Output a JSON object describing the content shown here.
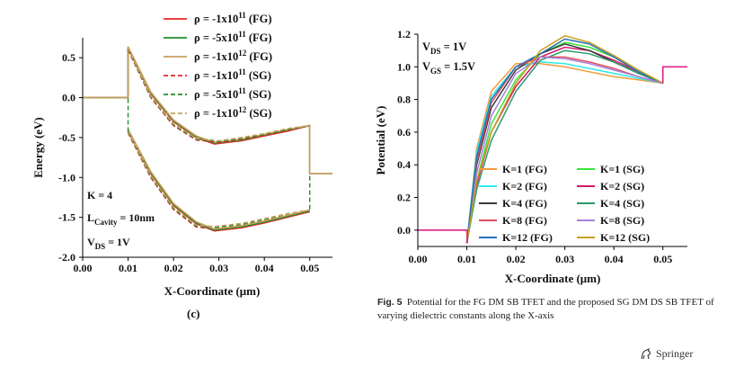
{
  "panel_label": "(c)",
  "caption": {
    "label": "Fig. 5",
    "text": "Potential for the FG DM SB TFET and the proposed SG DM DS SB TFET of varying dielectric constants along the X-axis"
  },
  "publisher": {
    "name": "Springer",
    "icon": "springer-horse-icon"
  },
  "chart_data": [
    {
      "type": "line",
      "xlabel": "X-Coordinate (μm)",
      "ylabel": "Energy (eV)",
      "xlim": [
        0.0,
        0.055
      ],
      "ylim": [
        -2.0,
        0.75
      ],
      "xticks": [
        "0.00",
        "0.01",
        "0.02",
        "0.03",
        "0.04",
        "0.05"
      ],
      "yticks": [
        "0.5",
        "0.0",
        "-0.5",
        "-1.0",
        "-1.5",
        "-2.0"
      ],
      "legend_position": "top-right",
      "annotations": [
        "K = 4",
        "L",
        "Cavity",
        "= 10nm",
        "V",
        "DS",
        "= 1V"
      ],
      "series": [
        {
          "name": "ρ = -1x10",
          "sup": "11",
          "tag": "(FG)",
          "color": "#e8242c",
          "dashed": false,
          "band": "conduction",
          "x": [
            0.0,
            0.01,
            0.01,
            0.015,
            0.02,
            0.025,
            0.029,
            0.035,
            0.04,
            0.045,
            0.05,
            0.05,
            0.055
          ],
          "y": [
            0.0,
            0.0,
            0.62,
            0.05,
            -0.3,
            -0.5,
            -0.58,
            -0.54,
            -0.48,
            -0.42,
            -0.35,
            -0.95,
            -0.95
          ]
        },
        {
          "name": "ρ = -5x10",
          "sup": "11",
          "tag": "(FG)",
          "color": "#1f8f2a",
          "dashed": false,
          "band": "conduction",
          "x": [
            0.0,
            0.01,
            0.01,
            0.015,
            0.02,
            0.025,
            0.029,
            0.035,
            0.04,
            0.045,
            0.05,
            0.05,
            0.055
          ],
          "y": [
            0.0,
            0.0,
            0.63,
            0.06,
            -0.29,
            -0.49,
            -0.57,
            -0.53,
            -0.47,
            -0.41,
            -0.35,
            -0.95,
            -0.95
          ]
        },
        {
          "name": "ρ = -1x10",
          "sup": "12",
          "tag": "(FG)",
          "color": "#c8a060",
          "dashed": false,
          "band": "conduction",
          "x": [
            0.0,
            0.01,
            0.01,
            0.015,
            0.02,
            0.025,
            0.029,
            0.035,
            0.04,
            0.045,
            0.05,
            0.05,
            0.055
          ],
          "y": [
            0.0,
            0.0,
            0.64,
            0.07,
            -0.28,
            -0.48,
            -0.56,
            -0.52,
            -0.46,
            -0.4,
            -0.35,
            -0.95,
            -0.95
          ]
        },
        {
          "name": "ρ = -1x10",
          "sup": "11",
          "tag": "(SG)",
          "color": "#e8242c",
          "dashed": true,
          "band": "conduction",
          "x": [
            0.01,
            0.015,
            0.02,
            0.025,
            0.03,
            0.035,
            0.04,
            0.045,
            0.05
          ],
          "y": [
            0.6,
            0.0,
            -0.35,
            -0.53,
            -0.56,
            -0.52,
            -0.47,
            -0.41,
            -0.35
          ]
        },
        {
          "name": "ρ = -5x10",
          "sup": "11",
          "tag": "(SG)",
          "color": "#1f8f2a",
          "dashed": true,
          "band": "conduction",
          "x": [
            0.01,
            0.015,
            0.02,
            0.025,
            0.03,
            0.035,
            0.04,
            0.045,
            0.05
          ],
          "y": [
            0.61,
            0.01,
            -0.34,
            -0.52,
            -0.55,
            -0.51,
            -0.46,
            -0.4,
            -0.35
          ]
        },
        {
          "name": "ρ = -1x10",
          "sup": "12",
          "tag": "(SG)",
          "color": "#c8a060",
          "dashed": true,
          "band": "conduction",
          "x": [
            0.01,
            0.015,
            0.02,
            0.025,
            0.03,
            0.035,
            0.04,
            0.045,
            0.05
          ],
          "y": [
            0.62,
            0.02,
            -0.33,
            -0.51,
            -0.54,
            -0.5,
            -0.45,
            -0.39,
            -0.35
          ]
        }
      ],
      "valence_band": {
        "x": [
          0.01,
          0.015,
          0.02,
          0.025,
          0.029,
          0.035,
          0.04,
          0.045,
          0.05
        ],
        "fg_y": [
          -0.42,
          -0.95,
          -1.35,
          -1.58,
          -1.67,
          -1.63,
          -1.57,
          -1.5,
          -1.43
        ],
        "sg_y": [
          -0.44,
          -1.0,
          -1.4,
          -1.62,
          -1.64,
          -1.6,
          -1.54,
          -1.48,
          -1.43
        ]
      }
    },
    {
      "type": "line",
      "xlabel": "X-Coordinate (μm)",
      "ylabel": "Potential (eV)",
      "xlim": [
        0.0,
        0.055
      ],
      "ylim": [
        -0.1,
        1.2
      ],
      "xticks": [
        "0.00",
        "0.01",
        "0.02",
        "0.03",
        "0.04",
        "0.05"
      ],
      "yticks": [
        "1.2",
        "1.0",
        "0.8",
        "0.6",
        "0.4",
        "0.2",
        "0.0"
      ],
      "legend_position": "bottom-right",
      "annotations": [
        "V",
        "DS",
        "= 1V",
        "V",
        "GS",
        "= 1.5V"
      ],
      "series": [
        {
          "name": "K=1 (FG)",
          "color": "#f39a3c",
          "x": [
            0.0,
            0.01,
            0.01,
            0.012,
            0.015,
            0.02,
            0.025,
            0.03,
            0.035,
            0.04,
            0.045,
            0.05,
            0.05,
            0.055
          ],
          "y": [
            0.0,
            0.0,
            -0.08,
            0.5,
            0.85,
            1.02,
            1.02,
            1.0,
            0.97,
            0.94,
            0.92,
            0.9,
            1.0,
            1.0
          ]
        },
        {
          "name": "K=1 (SG)",
          "color": "#39e639",
          "x": [
            0.01,
            0.012,
            0.015,
            0.02,
            0.025,
            0.03,
            0.035,
            0.04,
            0.045,
            0.05
          ],
          "y": [
            -0.08,
            0.3,
            0.65,
            0.92,
            1.08,
            1.15,
            1.12,
            1.06,
            0.98,
            0.9
          ]
        },
        {
          "name": "K=2 (FG)",
          "color": "#2ee8e8",
          "x": [
            0.01,
            0.012,
            0.015,
            0.02,
            0.025,
            0.03,
            0.035,
            0.04,
            0.045,
            0.05
          ],
          "y": [
            -0.08,
            0.48,
            0.82,
            1.0,
            1.03,
            1.02,
            0.99,
            0.96,
            0.93,
            0.9
          ]
        },
        {
          "name": "K=2 (SG)",
          "color": "#d4186a",
          "x": [
            0.01,
            0.012,
            0.015,
            0.02,
            0.025,
            0.03,
            0.035,
            0.04,
            0.045,
            0.05
          ],
          "y": [
            -0.08,
            0.28,
            0.6,
            0.88,
            1.06,
            1.12,
            1.1,
            1.04,
            0.97,
            0.9
          ]
        },
        {
          "name": "K=4 (FG)",
          "color": "#3a3a3a",
          "x": [
            0.01,
            0.012,
            0.015,
            0.02,
            0.025,
            0.03,
            0.035,
            0.04,
            0.045,
            0.05
          ],
          "y": [
            -0.08,
            0.4,
            0.75,
            0.98,
            1.08,
            1.14,
            1.1,
            1.03,
            0.96,
            0.9
          ]
        },
        {
          "name": "K=4 (SG)",
          "color": "#2a9a6a",
          "x": [
            0.01,
            0.012,
            0.015,
            0.02,
            0.025,
            0.03,
            0.035,
            0.04,
            0.045,
            0.05
          ],
          "y": [
            -0.08,
            0.25,
            0.55,
            0.85,
            1.04,
            1.1,
            1.08,
            1.03,
            0.96,
            0.9
          ]
        },
        {
          "name": "K=8 (FG)",
          "color": "#e05060",
          "x": [
            0.01,
            0.012,
            0.015,
            0.02,
            0.025,
            0.03,
            0.035,
            0.04,
            0.045,
            0.05
          ],
          "y": [
            -0.08,
            0.42,
            0.78,
            1.0,
            1.06,
            1.06,
            1.03,
            0.99,
            0.94,
            0.9
          ]
        },
        {
          "name": "K=8 (SG)",
          "color": "#a880d8",
          "x": [
            0.01,
            0.012,
            0.015,
            0.02,
            0.025,
            0.03,
            0.035,
            0.04,
            0.045,
            0.05
          ],
          "y": [
            -0.08,
            0.35,
            0.7,
            0.96,
            1.06,
            1.05,
            1.02,
            0.98,
            0.94,
            0.9
          ]
        },
        {
          "name": "K=12 (FG)",
          "color": "#2a70b8",
          "x": [
            0.01,
            0.012,
            0.015,
            0.02,
            0.025,
            0.03,
            0.035,
            0.04,
            0.045,
            0.05
          ],
          "y": [
            -0.08,
            0.45,
            0.8,
            1.0,
            1.08,
            1.17,
            1.14,
            1.06,
            0.97,
            0.9
          ]
        },
        {
          "name": "K=12 (SG)",
          "color": "#c8a020",
          "x": [
            0.01,
            0.012,
            0.015,
            0.02,
            0.025,
            0.03,
            0.035,
            0.04,
            0.045,
            0.05
          ],
          "y": [
            -0.08,
            0.3,
            0.6,
            0.9,
            1.1,
            1.19,
            1.15,
            1.07,
            0.98,
            0.9
          ]
        }
      ]
    }
  ]
}
